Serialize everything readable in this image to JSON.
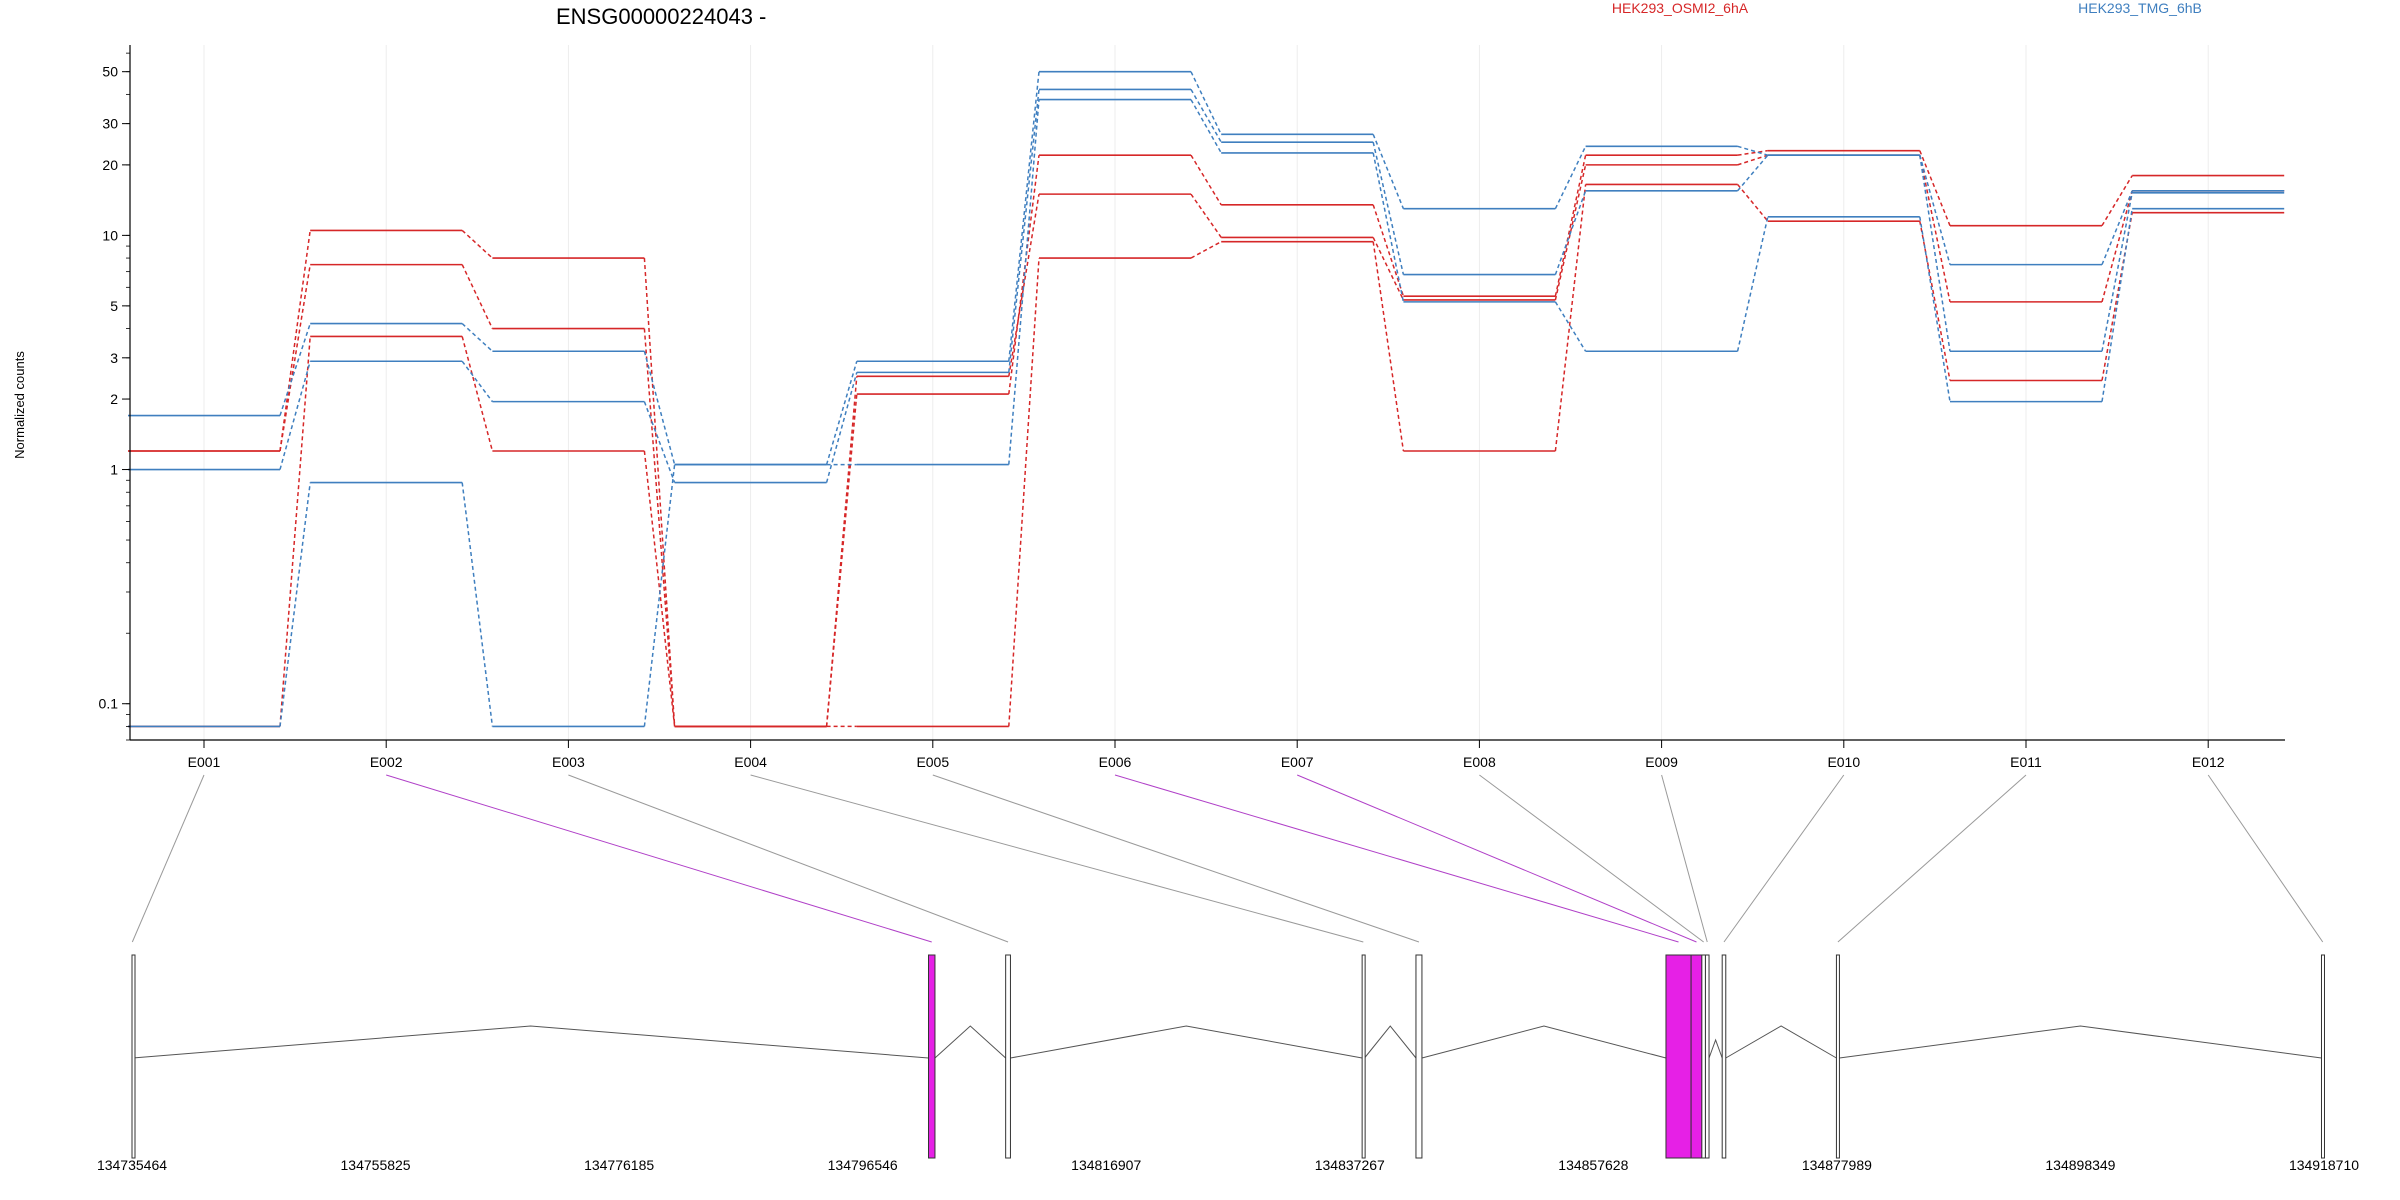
{
  "chart_data": {
    "type": "line",
    "title": "ENSG00000224043 -",
    "ylabel": "Normalized counts",
    "yscale": "log",
    "ylim": [
      0.07,
      65
    ],
    "yticks": [
      0.1,
      1,
      2,
      3,
      5,
      10,
      20,
      30,
      50
    ],
    "ytick_labels": [
      "0.1",
      "1",
      "2",
      "3",
      "5",
      "10",
      "20",
      "30",
      "50"
    ],
    "categories": [
      "E001",
      "E002",
      "E003",
      "E004",
      "E005",
      "E006",
      "E007",
      "E008",
      "E009",
      "E010",
      "E011",
      "E012"
    ],
    "legend": [
      {
        "label": "HEK293_OSMI2_6hA",
        "color": "#d62728"
      },
      {
        "label": "HEK293_TMG_6hB",
        "color": "#3f7fbf"
      }
    ],
    "series": [
      {
        "group": 0,
        "color": "#d62728",
        "values": [
          1.2,
          10.5,
          8.0,
          0.08,
          2.1,
          22,
          13.5,
          5.5,
          22,
          23,
          11,
          18
        ]
      },
      {
        "group": 0,
        "color": "#d62728",
        "values": [
          1.2,
          7.5,
          4.0,
          0.08,
          2.5,
          15,
          9.8,
          5.3,
          20,
          22,
          5.2,
          15.5
        ]
      },
      {
        "group": 0,
        "color": "#d62728",
        "values": [
          0.08,
          3.7,
          1.2,
          0.08,
          0.08,
          8.0,
          9.4,
          1.2,
          16.5,
          11.5,
          2.4,
          12.5
        ]
      },
      {
        "group": 1,
        "color": "#3f7fbf",
        "values": [
          1.7,
          4.2,
          3.2,
          1.05,
          2.9,
          50,
          27,
          13,
          24,
          22,
          7.5,
          15.5
        ]
      },
      {
        "group": 1,
        "color": "#3f7fbf",
        "values": [
          1.0,
          2.9,
          1.95,
          0.88,
          2.6,
          42,
          25,
          6.8,
          15.5,
          22,
          3.2,
          15.2
        ]
      },
      {
        "group": 1,
        "color": "#3f7fbf",
        "values": [
          0.08,
          0.88,
          0.08,
          1.05,
          1.05,
          38,
          22.5,
          5.2,
          3.2,
          12,
          1.95,
          13
        ]
      }
    ],
    "gene_model": {
      "coord_ticks": [
        "134735464",
        "134755825",
        "134776185",
        "134796546",
        "134816907",
        "134837267",
        "134857628",
        "134877989",
        "134898349",
        "134918710"
      ],
      "highlight_color": "#e620e6",
      "exons": [
        {
          "id": "E001",
          "start": 134735464,
          "end": 134735520,
          "highlight": false
        },
        {
          "id": "E002",
          "start": 134802050,
          "end": 134802590,
          "highlight": true
        },
        {
          "id": "E003",
          "start": 134808500,
          "end": 134808900,
          "highlight": false
        },
        {
          "id": "E004",
          "start": 134838300,
          "end": 134838500,
          "highlight": false
        },
        {
          "id": "E005",
          "start": 134842800,
          "end": 134843300,
          "highlight": false
        },
        {
          "id": "E006",
          "start": 134863700,
          "end": 134865800,
          "highlight": true
        },
        {
          "id": "E007",
          "start": 134865800,
          "end": 134866700,
          "highlight": true
        },
        {
          "id": "E008",
          "start": 134866700,
          "end": 134867000,
          "highlight": false
        },
        {
          "id": "E009",
          "start": 134867000,
          "end": 134867300,
          "highlight": false
        },
        {
          "id": "E010",
          "start": 134868400,
          "end": 134868700,
          "highlight": false
        },
        {
          "id": "E011",
          "start": 134877950,
          "end": 134878200,
          "highlight": false
        },
        {
          "id": "E012",
          "start": 134918500,
          "end": 134918710,
          "highlight": false
        }
      ]
    }
  }
}
